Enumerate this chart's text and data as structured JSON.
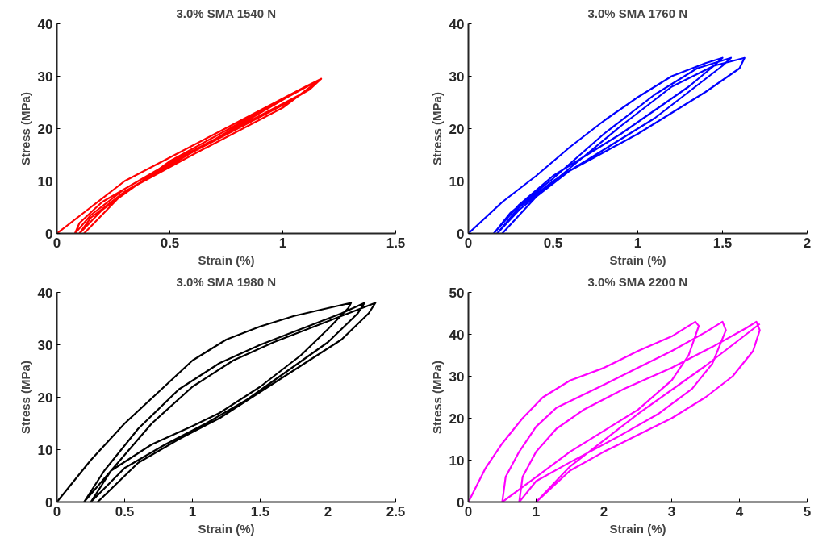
{
  "chart_data": [
    {
      "type": "line",
      "title": "3.0% SMA 1540 N",
      "xlabel": "Strain (%)",
      "ylabel": "Stress (MPa)",
      "xlim": [
        0,
        1.5
      ],
      "ylim": [
        0,
        40
      ],
      "xticks": [
        0,
        0.5,
        1,
        1.5
      ],
      "yticks": [
        0,
        10,
        20,
        30,
        40
      ],
      "grid": false,
      "series": [
        {
          "color": "#ff0000",
          "x": [
            0,
            0.15,
            0.3,
            0.5,
            0.7,
            0.9,
            1.1,
            1.17,
            1.12,
            1.0,
            0.8,
            0.6,
            0.4,
            0.2,
            0.1,
            0.08,
            0.15,
            0.3,
            0.5,
            0.7,
            0.9,
            1.1,
            1.17,
            1.1,
            0.9,
            0.7,
            0.5,
            0.3,
            0.15,
            0.1,
            0.2,
            0.5,
            0.9,
            1.17,
            1.0,
            0.6,
            0.3,
            0.12
          ],
          "values": [
            0,
            5,
            10,
            14.5,
            19,
            23.5,
            28,
            29.5,
            27.5,
            24.5,
            20,
            15.5,
            11,
            6,
            2,
            0,
            3.5,
            8.5,
            13.5,
            18,
            23,
            28,
            29.5,
            27,
            22.5,
            18,
            13,
            8,
            3,
            0,
            4.5,
            13.8,
            23.2,
            29.5,
            24,
            15,
            8,
            0
          ]
        }
      ]
    },
    {
      "type": "line",
      "title": "3.0% SMA 1760 N",
      "xlabel": "Strain (%)",
      "ylabel": "Stress (MPa)",
      "xlim": [
        0,
        2
      ],
      "ylim": [
        0,
        40
      ],
      "xticks": [
        0,
        0.5,
        1,
        1.5,
        2
      ],
      "yticks": [
        0,
        10,
        20,
        30,
        40
      ],
      "grid": false,
      "series": [
        {
          "color": "#0000ff",
          "x": [
            0,
            0.2,
            0.4,
            0.6,
            0.8,
            1.0,
            1.2,
            1.4,
            1.5,
            1.45,
            1.3,
            1.1,
            0.9,
            0.7,
            0.5,
            0.3,
            0.15,
            0.25,
            0.5,
            0.8,
            1.1,
            1.35,
            1.55,
            1.5,
            1.3,
            1.1,
            0.8,
            0.5,
            0.3,
            0.17,
            0.3,
            0.6,
            0.9,
            1.2,
            1.45,
            1.63,
            1.6,
            1.4,
            1.2,
            1.0,
            0.8,
            0.6,
            0.4,
            0.2
          ],
          "values": [
            0,
            6,
            11,
            16.5,
            21.5,
            26,
            30,
            32.5,
            33.5,
            32,
            28,
            23.5,
            19,
            15,
            11,
            5.5,
            0,
            4,
            10.5,
            19,
            26.5,
            31.5,
            33.5,
            32,
            27,
            22,
            16,
            10,
            5,
            0,
            4.5,
            12.5,
            20.5,
            28,
            32,
            33.5,
            31.5,
            27,
            23,
            19,
            15.5,
            12,
            7,
            0
          ]
        }
      ]
    },
    {
      "type": "line",
      "title": "3.0% SMA 1980 N",
      "xlabel": "Strain (%)",
      "ylabel": "Stress (MPa)",
      "xlim": [
        0,
        2.5
      ],
      "ylim": [
        0,
        40
      ],
      "xticks": [
        0,
        0.5,
        1,
        1.5,
        2,
        2.5
      ],
      "yticks": [
        0,
        10,
        20,
        30,
        40
      ],
      "grid": false,
      "series": [
        {
          "color": "#000000",
          "x": [
            0,
            0.25,
            0.5,
            0.75,
            1.0,
            1.25,
            1.5,
            1.75,
            2.0,
            2.17,
            2.15,
            2.0,
            1.8,
            1.5,
            1.2,
            1.0,
            0.7,
            0.4,
            0.2,
            0.35,
            0.6,
            0.9,
            1.2,
            1.5,
            1.8,
            2.1,
            2.27,
            2.22,
            2.0,
            1.7,
            1.4,
            1.1,
            0.8,
            0.5,
            0.25,
            0.4,
            0.7,
            1.0,
            1.3,
            1.6,
            1.9,
            2.2,
            2.35,
            2.3,
            2.1,
            1.8,
            1.5,
            1.2,
            0.9,
            0.6,
            0.3
          ],
          "values": [
            0,
            8,
            15,
            21,
            27,
            31,
            33.5,
            35.5,
            37,
            38,
            37,
            33,
            28,
            22,
            17,
            14.5,
            11,
            6,
            0,
            6,
            14,
            21.5,
            26.5,
            30,
            33,
            36,
            38,
            36,
            30.5,
            25,
            19.5,
            15,
            11,
            6.5,
            0,
            6,
            15,
            22,
            27,
            30.5,
            33.5,
            36.5,
            38,
            36,
            31,
            26,
            21,
            16,
            12,
            7.5,
            0
          ]
        }
      ]
    },
    {
      "type": "line",
      "title": "3.0% SMA 2200 N",
      "xlabel": "Strain (%)",
      "ylabel": "Stress (MPa)",
      "xlim": [
        0,
        5
      ],
      "ylim": [
        0,
        50
      ],
      "xticks": [
        0,
        1,
        2,
        3,
        4,
        5
      ],
      "yticks": [
        0,
        10,
        20,
        30,
        40,
        50
      ],
      "grid": false,
      "series": [
        {
          "color": "#ff00ff",
          "x": [
            0,
            0.25,
            0.5,
            0.8,
            1.1,
            1.5,
            2.0,
            2.5,
            3.0,
            3.35,
            3.4,
            3.25,
            3.0,
            2.5,
            2.0,
            1.5,
            1.0,
            0.5,
            0.55,
            0.75,
            1.0,
            1.3,
            2.0,
            2.5,
            3.0,
            3.5,
            3.75,
            3.8,
            3.6,
            3.3,
            2.8,
            2.2,
            1.5,
            1.0,
            0.75,
            0.8,
            1.0,
            1.3,
            1.7,
            2.3,
            3.0,
            3.6,
            4.1,
            4.25,
            4.3,
            4.2,
            3.9,
            3.5,
            3.0,
            2.5,
            2.0,
            1.5,
            1.0,
            1.5,
            2.5,
            3.5,
            4.3
          ],
          "values": [
            0,
            8,
            14,
            20,
            25,
            29,
            32,
            36,
            39.5,
            43,
            42,
            35,
            29,
            22,
            17,
            12,
            6,
            0,
            6,
            12,
            18,
            22.5,
            28,
            32,
            36,
            40.5,
            43,
            41,
            33,
            27,
            21,
            15.5,
            9.5,
            5,
            0,
            6,
            12,
            17.5,
            22,
            27,
            32,
            37,
            41.5,
            43,
            41,
            36,
            30,
            25,
            20,
            16,
            12,
            7.5,
            0,
            8.5,
            21,
            32.5,
            42.5
          ]
        }
      ]
    }
  ]
}
